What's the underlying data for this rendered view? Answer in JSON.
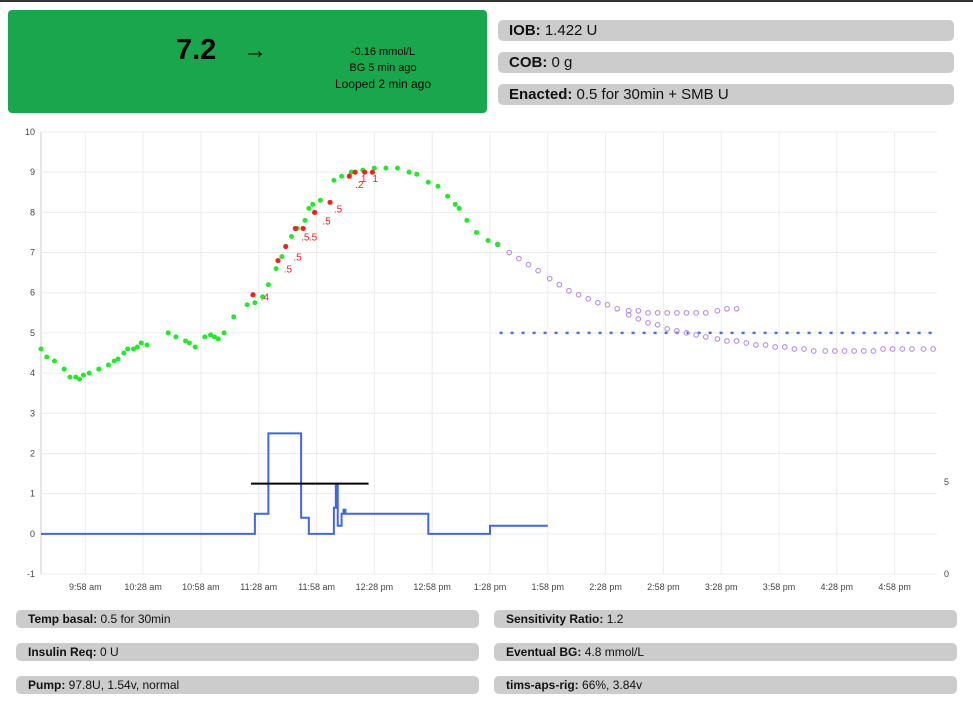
{
  "status": {
    "bg_value": "7.2",
    "trend_arrow": "→",
    "delta": "-0.16 mmol/L",
    "bg_age": "BG 5 min ago",
    "loop_age": "Looped 2 min ago",
    "status_color": "#1aa64c"
  },
  "top_pills": {
    "iob_label": "IOB:",
    "iob_value": " 1.422 U",
    "cob_label": "COB:",
    "cob_value": " 0 g",
    "enacted_label": "Enacted:",
    "enacted_value": " 0.5 for 30min + SMB U"
  },
  "bottom_pills": {
    "temp_basal_label": "Temp basal:",
    "temp_basal_value": " 0.5 for 30min",
    "insulin_req_label": "Insulin Req:",
    "insulin_req_value": " 0 U",
    "pump_label": "Pump:",
    "pump_value": " 97.8U, 1.54v, normal",
    "sensitivity_label": "Sensitivity Ratio:",
    "sensitivity_value": " 1.2",
    "eventual_bg_label": "Eventual BG:",
    "eventual_bg_value": " 4.8 mmol/L",
    "rig_label": "tims-aps-rig:",
    "rig_value": " 66%, 3.84v"
  },
  "chart_data": {
    "type": "scatter",
    "x_ticks": [
      "9:58 am",
      "10:28 am",
      "10:58 am",
      "11:28 am",
      "11:58 am",
      "12:28 pm",
      "12:58 pm",
      "1:28 pm",
      "1:58 pm",
      "2:28 pm",
      "2:58 pm",
      "3:28 pm",
      "3:58 pm",
      "4:28 pm",
      "4:58 pm"
    ],
    "x_tick_minutes": [
      598,
      628,
      658,
      688,
      718,
      748,
      778,
      808,
      838,
      868,
      898,
      928,
      958,
      988,
      1018
    ],
    "xlim": [
      575,
      1040
    ],
    "y_ticks": [
      "10",
      "9",
      "8",
      "7",
      "6",
      "5",
      "4",
      "3",
      "2",
      "1",
      "0",
      "-1"
    ],
    "ylim": [
      -1,
      10
    ],
    "y2_ticks": [
      "5",
      "0"
    ],
    "y2lim": [
      0,
      5
    ],
    "grid": true,
    "colors": {
      "bg": "#22e82e",
      "smb": "#ee2222",
      "prediction": "#b48ee8",
      "target": "#4b6ee0",
      "basal": "#4466dd",
      "iob_line": "#000000"
    },
    "bg_readings": [
      [
        575,
        4.6
      ],
      [
        578,
        4.4
      ],
      [
        582,
        4.3
      ],
      [
        587,
        4.1
      ],
      [
        590,
        3.9
      ],
      [
        593,
        3.9
      ],
      [
        595,
        3.85
      ],
      [
        597,
        3.95
      ],
      [
        600,
        4
      ],
      [
        605,
        4.1
      ],
      [
        610,
        4.2
      ],
      [
        613,
        4.3
      ],
      [
        615,
        4.35
      ],
      [
        618,
        4.5
      ],
      [
        620,
        4.6
      ],
      [
        623,
        4.6
      ],
      [
        625,
        4.65
      ],
      [
        627,
        4.75
      ],
      [
        630,
        4.7
      ],
      [
        641,
        5
      ],
      [
        645,
        4.9
      ],
      [
        650,
        4.8
      ],
      [
        652,
        4.75
      ],
      [
        655,
        4.65
      ],
      [
        660,
        4.9
      ],
      [
        663,
        4.95
      ],
      [
        665,
        4.9
      ],
      [
        667,
        4.85
      ],
      [
        670,
        5
      ],
      [
        675,
        5.4
      ],
      [
        682,
        5.7
      ],
      [
        686,
        5.75
      ],
      [
        690,
        5.9
      ],
      [
        693,
        6.2
      ],
      [
        697,
        6.6
      ],
      [
        700,
        6.9
      ],
      [
        705,
        7.4
      ],
      [
        708,
        7.6
      ],
      [
        712,
        7.8
      ],
      [
        714,
        8.1
      ],
      [
        716,
        8.2
      ],
      [
        720,
        8.3
      ],
      [
        727,
        8.8
      ],
      [
        731,
        8.9
      ],
      [
        736,
        9
      ],
      [
        742,
        9.05
      ],
      [
        748,
        9.1
      ],
      [
        754,
        9.1
      ],
      [
        760,
        9.1
      ],
      [
        766,
        9
      ],
      [
        770,
        8.95
      ],
      [
        776,
        8.75
      ],
      [
        781,
        8.65
      ],
      [
        786,
        8.4
      ],
      [
        790,
        8.2
      ],
      [
        792,
        8.1
      ],
      [
        796,
        7.8
      ],
      [
        801,
        7.5
      ],
      [
        807,
        7.3
      ],
      [
        812,
        7.2
      ]
    ],
    "smb_points": [
      [
        685,
        5.95
      ],
      [
        698,
        6.8
      ],
      [
        702,
        7.15
      ],
      [
        707,
        7.6
      ],
      [
        711,
        7.6
      ],
      [
        717,
        8
      ],
      [
        725,
        8.25
      ],
      [
        735,
        8.9
      ],
      [
        738,
        9
      ],
      [
        743,
        9
      ],
      [
        747,
        9
      ]
    ],
    "smb_labels": [
      [
        689,
        5.9,
        ".4"
      ],
      [
        701,
        6.6,
        ".5"
      ],
      [
        706,
        6.9,
        ".5"
      ],
      [
        710,
        7.4,
        ".5"
      ],
      [
        714,
        7.4,
        ".5"
      ],
      [
        721,
        7.8,
        ".5"
      ],
      [
        727,
        8.1,
        ".5"
      ],
      [
        738,
        8.7,
        ".2"
      ],
      [
        741,
        8.85,
        "1"
      ],
      [
        747,
        8.85,
        "1"
      ]
    ],
    "prediction_a": [
      [
        812,
        7.2
      ],
      [
        818,
        7
      ],
      [
        823,
        6.85
      ],
      [
        828,
        6.7
      ],
      [
        833,
        6.55
      ],
      [
        839,
        6.35
      ],
      [
        844,
        6.2
      ],
      [
        849,
        6.05
      ],
      [
        854,
        5.95
      ],
      [
        859,
        5.85
      ],
      [
        864,
        5.75
      ],
      [
        869,
        5.7
      ],
      [
        874,
        5.6
      ],
      [
        880,
        5.55
      ],
      [
        885,
        5.55
      ],
      [
        890,
        5.5
      ],
      [
        895,
        5.5
      ],
      [
        900,
        5.5
      ],
      [
        905,
        5.5
      ],
      [
        910,
        5.5
      ],
      [
        915,
        5.5
      ],
      [
        920,
        5.5
      ],
      [
        926,
        5.55
      ],
      [
        931,
        5.6
      ],
      [
        936,
        5.6
      ]
    ],
    "prediction_b": [
      [
        880,
        5.45
      ],
      [
        885,
        5.35
      ],
      [
        890,
        5.25
      ],
      [
        895,
        5.2
      ],
      [
        900,
        5.1
      ],
      [
        905,
        5.05
      ],
      [
        910,
        5
      ],
      [
        915,
        4.95
      ],
      [
        920,
        4.9
      ],
      [
        926,
        4.85
      ],
      [
        931,
        4.8
      ],
      [
        936,
        4.8
      ],
      [
        941,
        4.75
      ],
      [
        946,
        4.7
      ],
      [
        951,
        4.7
      ],
      [
        956,
        4.65
      ],
      [
        961,
        4.65
      ],
      [
        966,
        4.6
      ],
      [
        971,
        4.6
      ],
      [
        976,
        4.55
      ],
      [
        982,
        4.55
      ],
      [
        987,
        4.55
      ],
      [
        992,
        4.55
      ],
      [
        997,
        4.55
      ],
      [
        1002,
        4.55
      ],
      [
        1007,
        4.55
      ],
      [
        1012,
        4.6
      ],
      [
        1017,
        4.6
      ],
      [
        1022,
        4.6
      ],
      [
        1027,
        4.6
      ],
      [
        1033,
        4.6
      ],
      [
        1038,
        4.6
      ]
    ],
    "target_line": [
      [
        813,
        5
      ],
      [
        1040,
        5
      ]
    ],
    "basal_line": [
      [
        575,
        0
      ],
      [
        686,
        0
      ],
      [
        686,
        0.5
      ],
      [
        693,
        0.5
      ],
      [
        693,
        2.5
      ],
      [
        710,
        2.5
      ],
      [
        710,
        0.4
      ],
      [
        714,
        0.4
      ],
      [
        714,
        0
      ],
      [
        727,
        0
      ],
      [
        727,
        0.65
      ],
      [
        728,
        0.65
      ],
      [
        728,
        1.2
      ],
      [
        729,
        1.2
      ],
      [
        729,
        0.2
      ],
      [
        731,
        0.2
      ],
      [
        731,
        0.5
      ],
      [
        732,
        0.5
      ],
      [
        732,
        0.6
      ],
      [
        733,
        0.6
      ],
      [
        733,
        0.5
      ],
      [
        776,
        0.5
      ],
      [
        776,
        0
      ],
      [
        808,
        0
      ],
      [
        808,
        0.2
      ],
      [
        838,
        0.2
      ]
    ],
    "iob_line": [
      [
        684,
        1.25
      ],
      [
        745,
        1.25
      ]
    ]
  }
}
